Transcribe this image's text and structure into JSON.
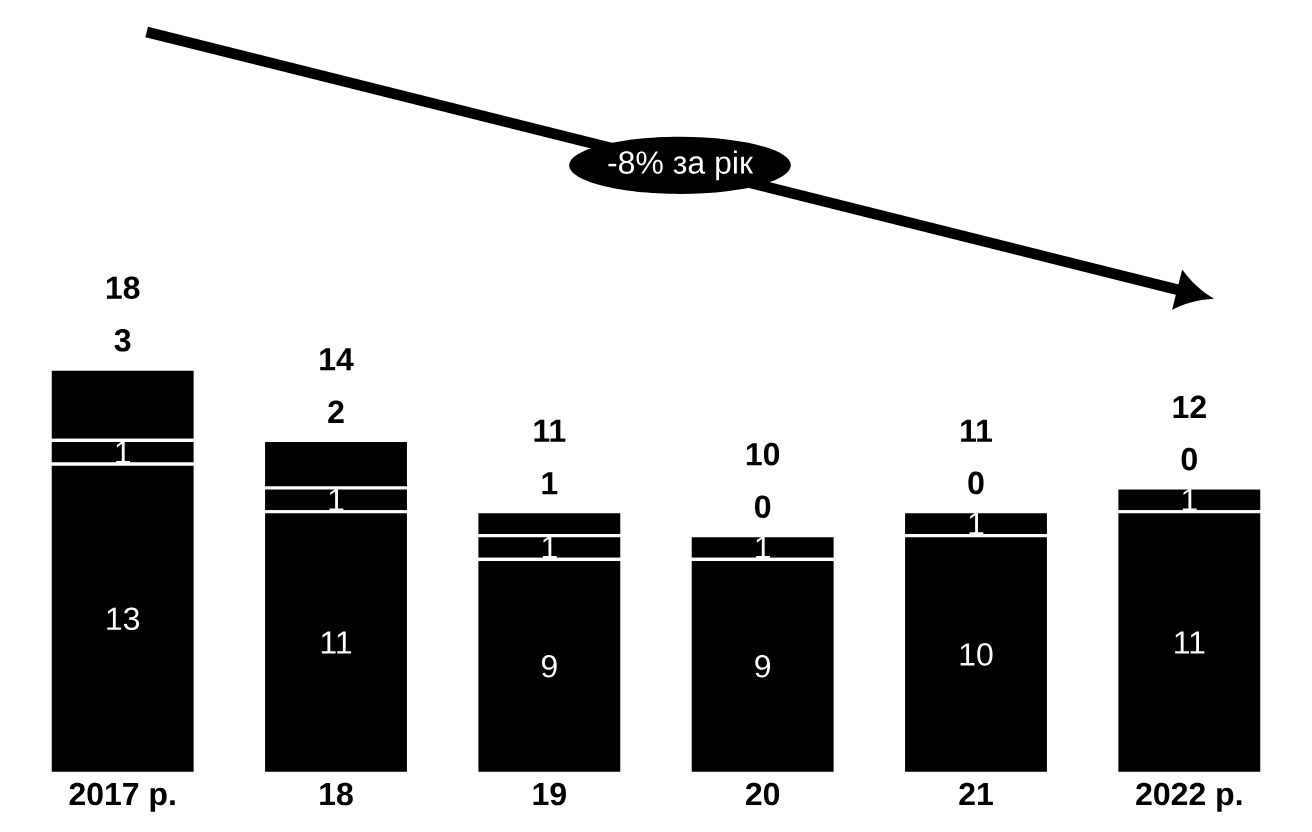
{
  "chart_data": {
    "type": "bar",
    "stacked": true,
    "categories": [
      "2017 р.",
      "18",
      "19",
      "20",
      "21",
      "2022 р."
    ],
    "series": [
      {
        "color": "#000000",
        "values": [
          13,
          11,
          9,
          9,
          10,
          11
        ]
      },
      {
        "color": "#000000",
        "values": [
          1,
          1,
          1,
          1,
          1,
          1
        ]
      },
      {
        "color": "#000000",
        "values": [
          3,
          2,
          1,
          0,
          0,
          0
        ]
      }
    ],
    "data_labels": true,
    "totals": [
      "18",
      "14",
      "11",
      "10",
      "11",
      "12"
    ],
    "annotations": [
      "-8% за рік"
    ]
  }
}
